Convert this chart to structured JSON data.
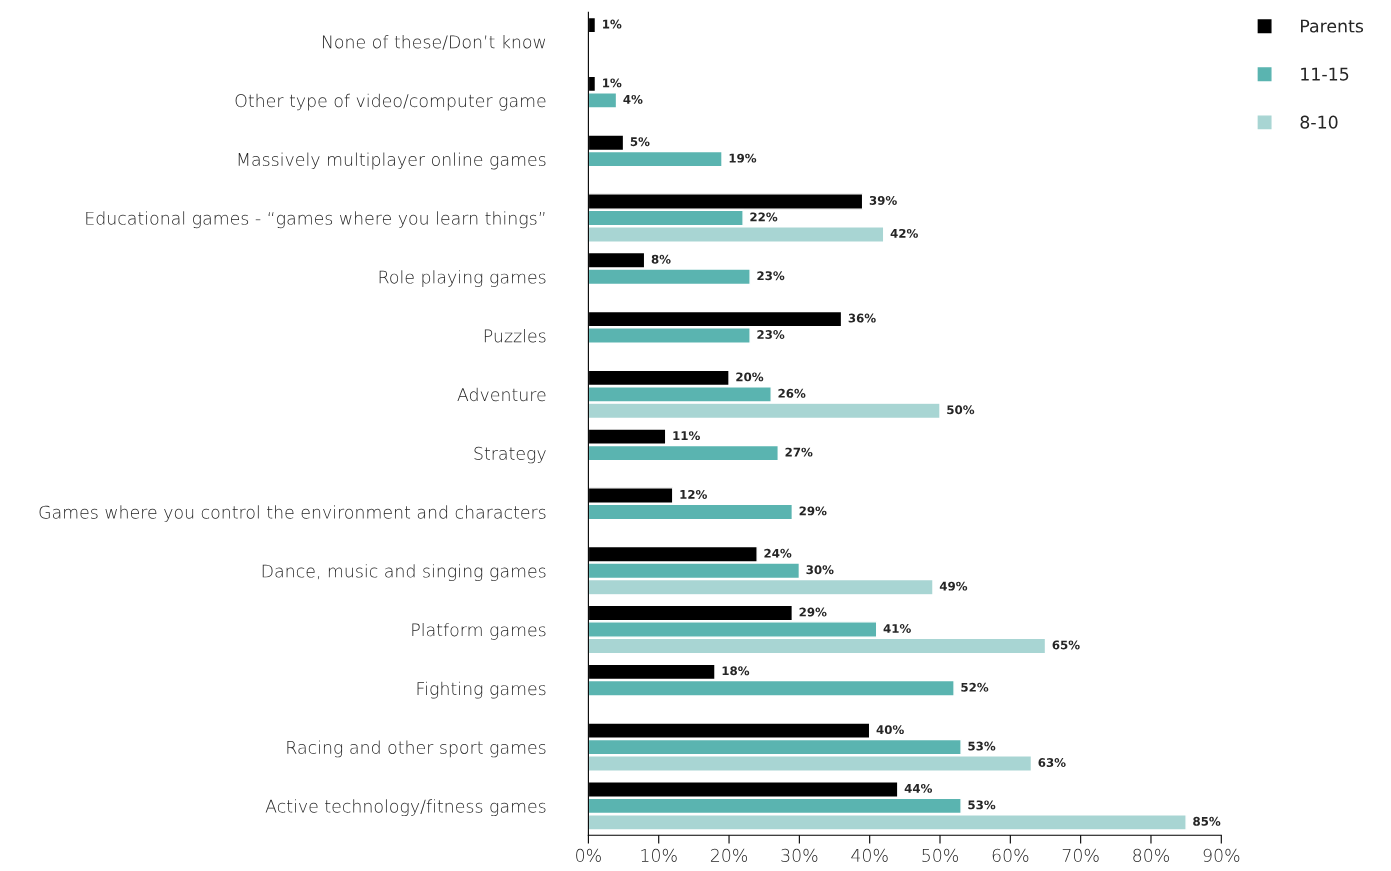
{
  "chart_data": {
    "type": "bar",
    "orientation": "horizontal",
    "legend": "top right",
    "grid": false,
    "categories": [
      "None of these/Don’t know",
      "Other type of video/computer game",
      "Massively multiplayer online games",
      "Educational games - “games where you learn things”",
      "Role playing games",
      "Puzzles",
      "Adventure",
      "Strategy",
      "Games where you control the environment and characters",
      "Dance, music and singing games",
      "Platform games",
      "Fighting games",
      "Racing and other sport games",
      "Active technology/fitness games"
    ],
    "series": [
      {
        "name": "Parents",
        "color": "#000000",
        "values": [
          1,
          1,
          5,
          39,
          8,
          36,
          20,
          11,
          12,
          24,
          29,
          18,
          40,
          44
        ],
        "value_labels": [
          "1%",
          "1%",
          "5%",
          "39%",
          "8%",
          "36%",
          "20%",
          "11%",
          "12%",
          "24%",
          "29%",
          "18%",
          "40%",
          "44%"
        ]
      },
      {
        "name": "11-15",
        "color": "#5ab4b0",
        "values": [
          null,
          4,
          19,
          22,
          23,
          23,
          26,
          27,
          29,
          30,
          41,
          52,
          53,
          53
        ],
        "value_labels": [
          null,
          "4%",
          "19%",
          "22%",
          "23%",
          "23%",
          "26%",
          "27%",
          "29%",
          "30%",
          "41%",
          "52%",
          "53%",
          "53%"
        ]
      },
      {
        "name": "8-10",
        "color": "#a8d5d3",
        "values": [
          null,
          null,
          null,
          42,
          null,
          null,
          50,
          null,
          null,
          49,
          65,
          null,
          63,
          85
        ],
        "value_labels": [
          null,
          null,
          null,
          "42%",
          null,
          null,
          "50%",
          null,
          null,
          "49%",
          "65%",
          null,
          "63%",
          "85%"
        ]
      }
    ],
    "xlim": [
      0,
      90
    ],
    "xticks": [
      {
        "value": 0,
        "label": "0%"
      },
      {
        "value": 10,
        "label": "10%"
      },
      {
        "value": 20,
        "label": "20%"
      },
      {
        "value": 30,
        "label": "30%"
      },
      {
        "value": 40,
        "label": "40%"
      },
      {
        "value": 50,
        "label": "50%"
      },
      {
        "value": 60,
        "label": "60%"
      },
      {
        "value": 70,
        "label": "70%"
      },
      {
        "value": 80,
        "label": "80%"
      },
      {
        "value": 90,
        "label": "90%"
      }
    ]
  }
}
